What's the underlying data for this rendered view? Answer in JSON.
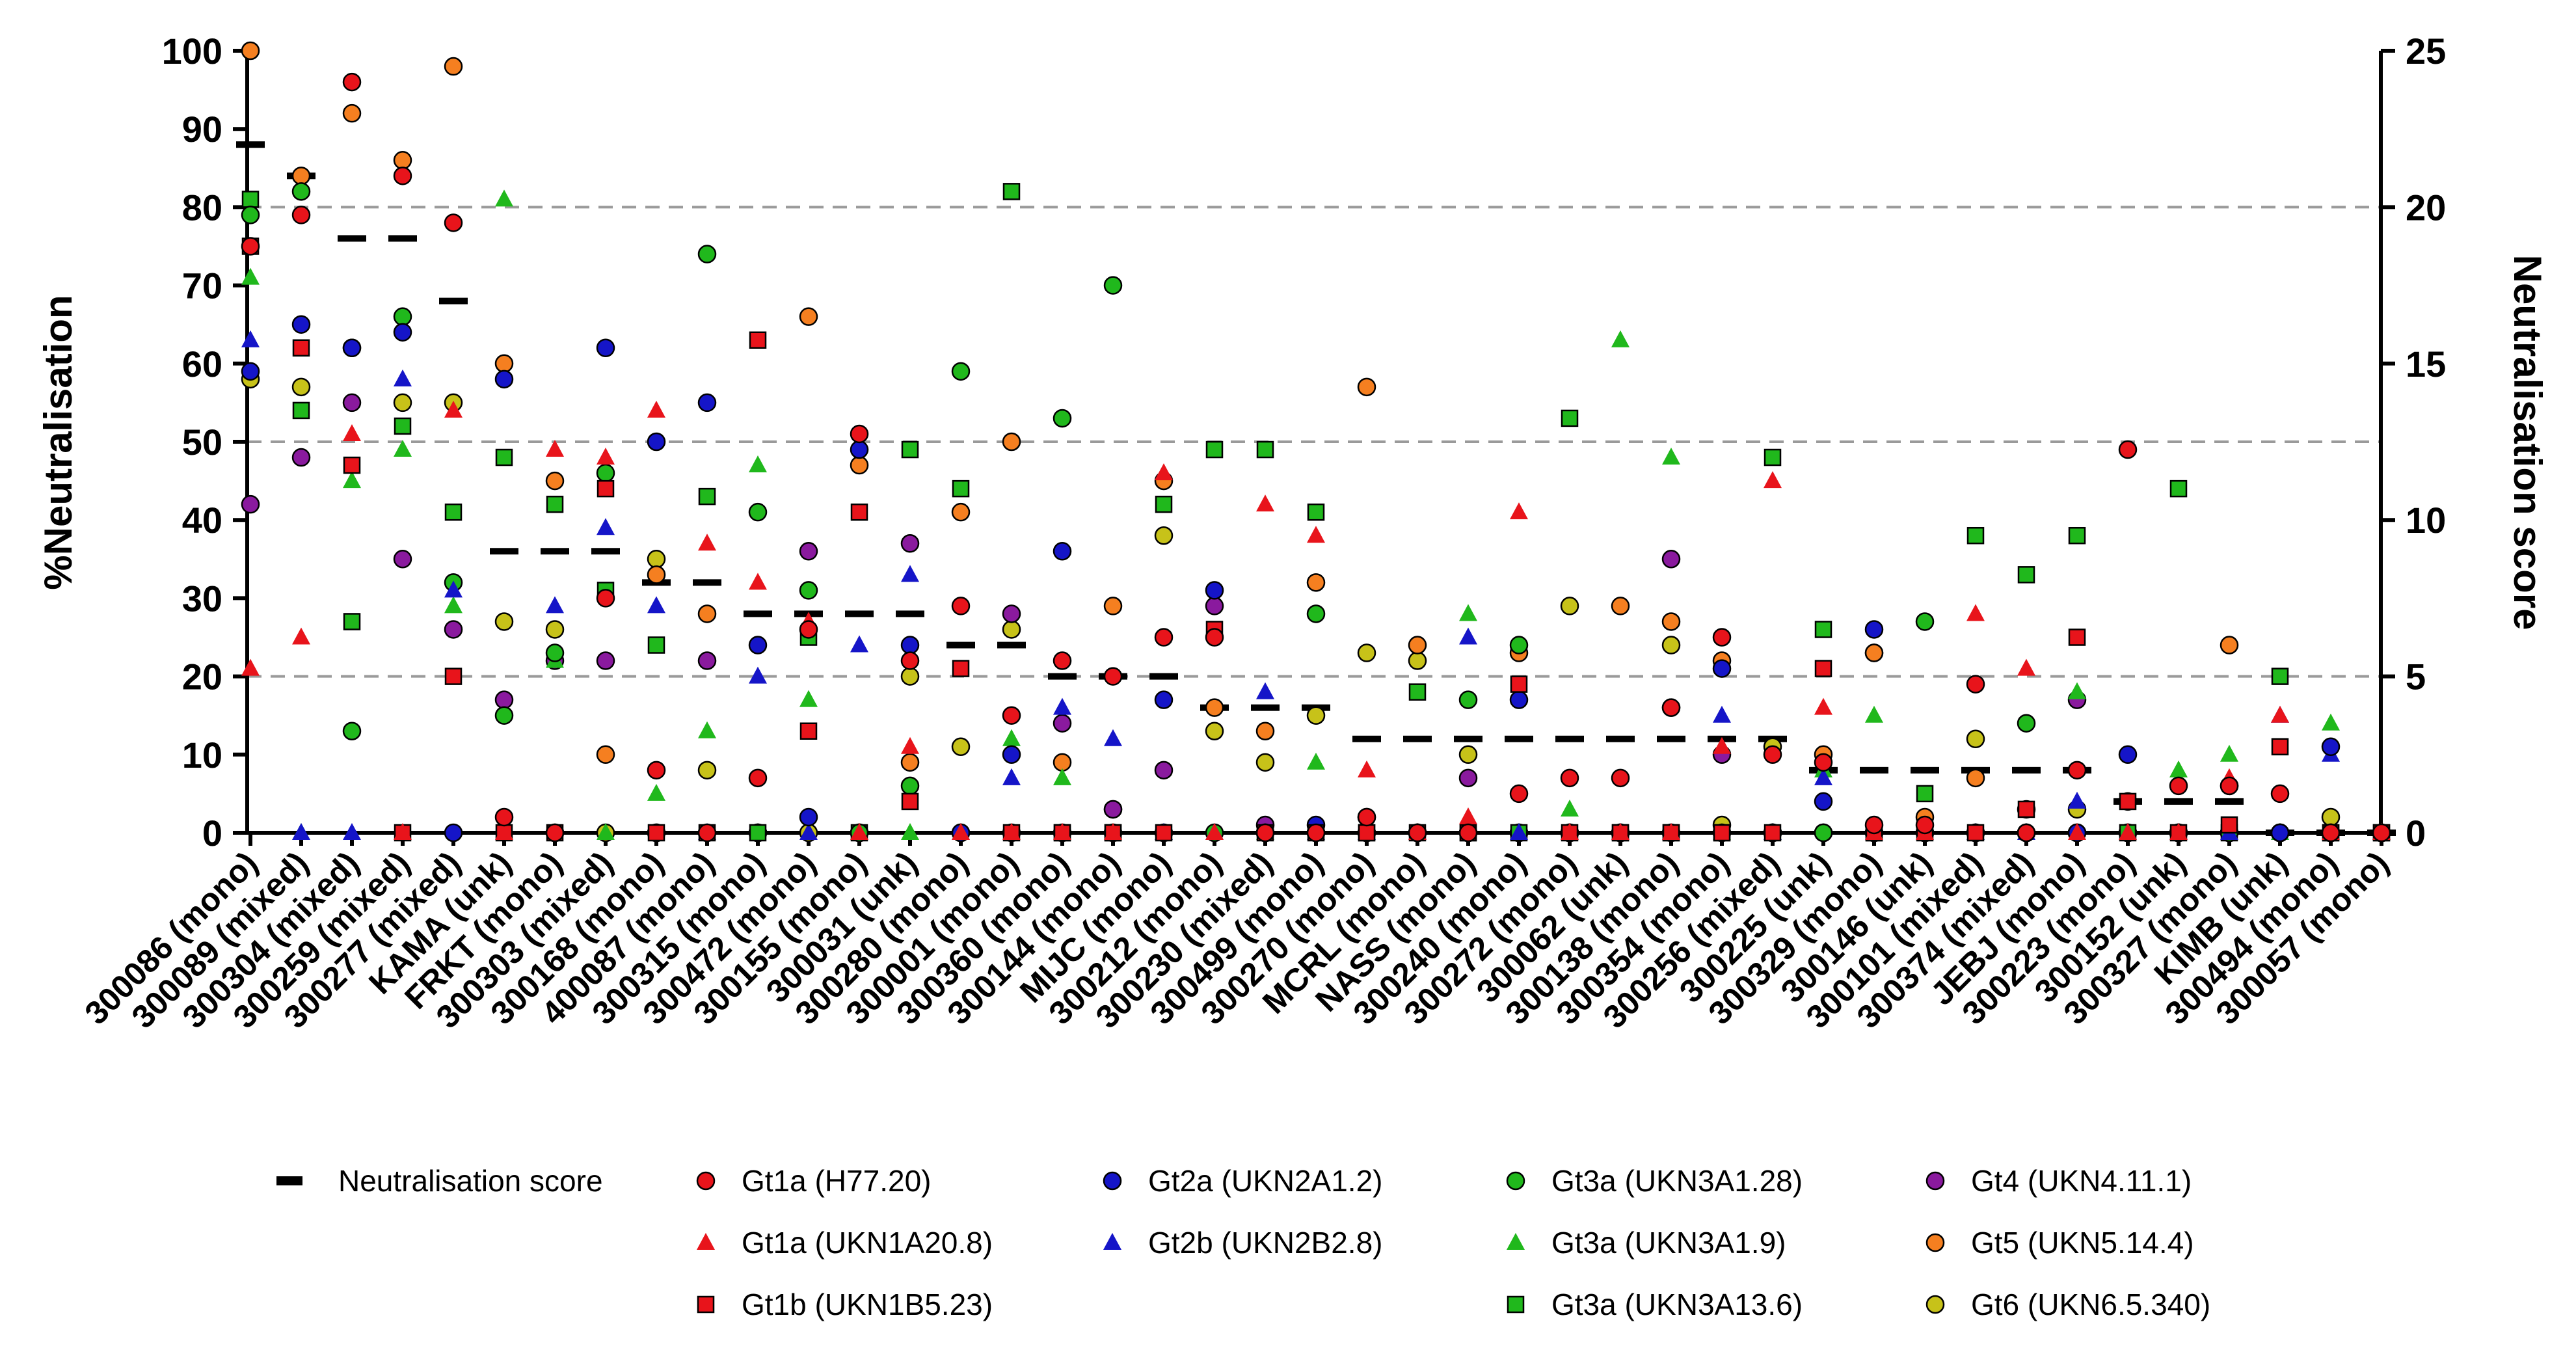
{
  "chart_data": {
    "type": "scatter",
    "ylabel": "%Neutralisation",
    "y2label": "Neutralisation score",
    "ylim": [
      0,
      100
    ],
    "y2lim": [
      0,
      25
    ],
    "yticks": [
      "0",
      "10",
      "20",
      "30",
      "40",
      "50",
      "60",
      "70",
      "80",
      "90",
      "100"
    ],
    "y2ticks": [
      "0",
      "5",
      "10",
      "15",
      "20",
      "25"
    ],
    "reference_lines_pct": [
      20,
      50,
      80
    ],
    "grid": false,
    "legend_position": "bottom",
    "categories": [
      "300086 (mono)",
      "300089 (mixed)",
      "300304 (mixed)",
      "300259 (mixed)",
      "300277 (mixed)",
      "KAMA (unk)",
      "FRKT (mono)",
      "300303 (mixed)",
      "300168 (mono)",
      "400087 (mono)",
      "300315 (mono)",
      "300472 (mono)",
      "300155 (mono)",
      "300031 (unk)",
      "300280 (mono)",
      "300001 (mono)",
      "300360 (mono)",
      "300144 (mono)",
      "MIJC (mono)",
      "300212 (mono)",
      "300230 (mixed)",
      "300499 (mono)",
      "300270 (mono)",
      "MCRL (mono)",
      "NASS (mono)",
      "300240 (mono)",
      "300272 (mono)",
      "300062 (unk)",
      "300138 (mono)",
      "300354 (mono)",
      "300256 (mixed)",
      "300225 (unk)",
      "300329 (mono)",
      "300146 (unk)",
      "300101 (mixed)",
      "300374 (mixed)",
      "JEBJ (mono)",
      "300223 (mono)",
      "300152 (unk)",
      "300327 (mono)",
      "KIMB (unk)",
      "300494 (mono)",
      "300057 (mono)"
    ],
    "neutralisation_score": {
      "name": "Neutralisation score",
      "color": "#000000",
      "values": [
        22,
        21,
        19,
        19,
        17,
        9,
        9,
        9,
        8,
        8,
        7,
        7,
        7,
        7,
        6,
        6,
        5,
        5,
        5,
        4,
        4,
        4,
        3,
        3,
        3,
        3,
        3,
        3,
        3,
        3,
        3,
        2,
        2,
        2,
        2,
        2,
        2,
        1,
        1,
        1,
        0,
        0,
        0
      ]
    },
    "series": [
      {
        "name": "Gt1a (H77.20)",
        "marker": "circle",
        "color": "#e8141b",
        "values": [
          75,
          79,
          96,
          84,
          78,
          2,
          0,
          30,
          8,
          0,
          7,
          26,
          51,
          22,
          29,
          15,
          22,
          20,
          25,
          25,
          0,
          0,
          2,
          0,
          0,
          5,
          7,
          7,
          16,
          25,
          10,
          9,
          1,
          1,
          19,
          0,
          8,
          49,
          6,
          6,
          5,
          0,
          0
        ]
      },
      {
        "name": "Gt1a (UKN1A20.8)",
        "marker": "triangle",
        "color": "#e8141b",
        "values": [
          21,
          25,
          51,
          0,
          54,
          0,
          49,
          48,
          54,
          37,
          32,
          27,
          0,
          11,
          0,
          0,
          0,
          0,
          46,
          0,
          42,
          38,
          8,
          0,
          2,
          41,
          0,
          0,
          0,
          11,
          45,
          16,
          0,
          0,
          28,
          21,
          0,
          0,
          0,
          7,
          15,
          0,
          0
        ]
      },
      {
        "name": "Gt1b (UKN1B5.23)",
        "marker": "square",
        "color": "#e8141b",
        "values": [
          75,
          62,
          47,
          0,
          20,
          0,
          0,
          44,
          0,
          0,
          63,
          13,
          41,
          4,
          21,
          0,
          0,
          0,
          0,
          26,
          0,
          0,
          0,
          0,
          0,
          19,
          0,
          0,
          0,
          0,
          0,
          21,
          0,
          0,
          0,
          3,
          25,
          4,
          0,
          1,
          11,
          0,
          0
        ]
      },
      {
        "name": "Gt2a (UKN2A1.2)",
        "marker": "circle",
        "color": "#1515c8",
        "values": [
          59,
          65,
          62,
          64,
          0,
          58,
          0,
          62,
          50,
          55,
          24,
          2,
          49,
          24,
          0,
          10,
          36,
          0,
          17,
          31,
          0,
          1,
          2,
          0,
          0,
          17,
          0,
          0,
          16,
          21,
          0,
          4,
          26,
          0,
          0,
          0,
          0,
          10,
          0,
          6,
          0,
          11,
          0
        ]
      },
      {
        "name": "Gt2b (UKN2B2.8)",
        "marker": "triangle",
        "color": "#1515c8",
        "values": [
          63,
          0,
          0,
          58,
          31,
          0,
          29,
          39,
          29,
          0,
          20,
          0,
          24,
          33,
          0,
          7,
          16,
          12,
          0,
          0,
          18,
          0,
          0,
          0,
          25,
          0,
          0,
          0,
          0,
          15,
          0,
          7,
          0,
          0,
          0,
          0,
          4,
          0,
          0,
          0,
          15,
          10,
          0
        ]
      },
      {
        "name": "Gt3a (UKN3A1.28)",
        "marker": "circle",
        "color": "#20b81c",
        "values": [
          79,
          82,
          13,
          66,
          32,
          15,
          23,
          46,
          0,
          74,
          41,
          31,
          0,
          6,
          59,
          0,
          53,
          70,
          0,
          0,
          0,
          28,
          0,
          0,
          17,
          24,
          0,
          0,
          0,
          0,
          0,
          0,
          0,
          27,
          0,
          14,
          0,
          4,
          0,
          0,
          0,
          0,
          0
        ]
      },
      {
        "name": "Gt3a (UKN3A1.9)",
        "marker": "triangle",
        "color": "#20b81c",
        "values": [
          71,
          0,
          45,
          49,
          29,
          81,
          22,
          0,
          5,
          13,
          47,
          17,
          0,
          0,
          0,
          12,
          7,
          0,
          0,
          0,
          0,
          9,
          0,
          0,
          28,
          0,
          3,
          63,
          48,
          0,
          0,
          8,
          15,
          0,
          0,
          0,
          18,
          0,
          8,
          10,
          0,
          14,
          0
        ]
      },
      {
        "name": "Gt3a (UKN3A13.6)",
        "marker": "square",
        "color": "#20b81c",
        "values": [
          81,
          54,
          27,
          52,
          41,
          48,
          42,
          31,
          24,
          43,
          0,
          25,
          0,
          49,
          44,
          82,
          0,
          0,
          42,
          49,
          49,
          41,
          0,
          18,
          0,
          0,
          53,
          0,
          0,
          0,
          48,
          26,
          0,
          5,
          38,
          33,
          38,
          0,
          44,
          0,
          20,
          0,
          0
        ]
      },
      {
        "name": "Gt4 (UKN4.11.1)",
        "marker": "circle",
        "color": "#8a1a9e",
        "values": [
          42,
          48,
          55,
          35,
          26,
          17,
          22,
          22,
          0,
          22,
          0,
          36,
          0,
          37,
          0,
          28,
          14,
          3,
          8,
          29,
          1,
          0,
          0,
          0,
          7,
          0,
          0,
          0,
          35,
          10,
          0,
          0,
          0,
          0,
          0,
          0,
          17,
          0,
          0,
          0,
          0,
          0,
          0
        ]
      },
      {
        "name": "Gt5 (UKN5.14.4)",
        "marker": "circle",
        "color": "#f57f20",
        "values": [
          100,
          84,
          92,
          86,
          98,
          60,
          45,
          10,
          33,
          28,
          0,
          66,
          47,
          9,
          41,
          50,
          9,
          29,
          45,
          16,
          13,
          32,
          57,
          24,
          0,
          23,
          0,
          29,
          27,
          22,
          0,
          10,
          23,
          2,
          7,
          3,
          0,
          0,
          0,
          24,
          0,
          0,
          0
        ]
      },
      {
        "name": "Gt6 (UKN6.5.340)",
        "marker": "circle",
        "color": "#c7c219",
        "values": [
          58,
          57,
          62,
          55,
          55,
          27,
          26,
          0,
          35,
          8,
          0,
          0,
          0,
          20,
          11,
          26,
          0,
          3,
          38,
          13,
          9,
          15,
          23,
          22,
          10,
          0,
          29,
          0,
          24,
          1,
          11,
          0,
          23,
          0,
          12,
          0,
          3,
          0,
          0,
          0,
          0,
          2,
          0
        ]
      }
    ]
  }
}
